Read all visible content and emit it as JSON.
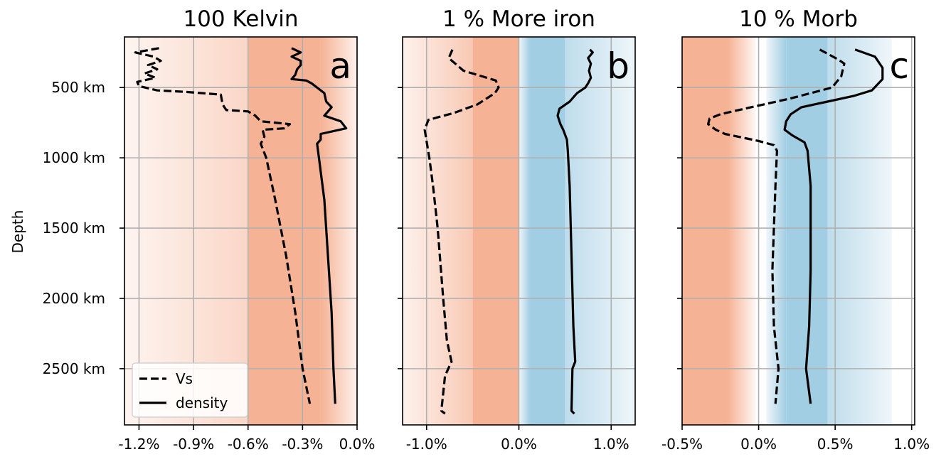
{
  "chart_data": {
    "type": "line",
    "ylabel": "Depth",
    "y_reversed": true,
    "ylim_km": [
      140,
      2900
    ],
    "yticks": [
      500,
      1000,
      1500,
      2000,
      2500
    ],
    "ytick_labels": [
      "500 km",
      "1000 km",
      "1500 km",
      "2000 km",
      "2500 km"
    ],
    "grid": true,
    "legend": {
      "placement": "lower-left",
      "panel": 0,
      "entries": [
        {
          "name": "Vs",
          "style": "dashed"
        },
        {
          "name": "density",
          "style": "solid"
        }
      ]
    },
    "panels": [
      {
        "title": "100 Kelvin",
        "letter": "a",
        "xlim": [
          -1.28,
          0.0
        ],
        "xticks": [
          -1.2,
          -0.9,
          -0.6,
          -0.3,
          0.0
        ],
        "xtick_labels": [
          "-1.2%",
          "-0.9%",
          "-0.6%",
          "-0.3%",
          "0.0%"
        ],
        "shading": [
          {
            "from": -1.28,
            "to": -0.6,
            "color": "#f4a582",
            "alpha_from": 0.12,
            "alpha_to": 0.45
          },
          {
            "from": -0.6,
            "to": -0.2,
            "color": "#f4a582",
            "alpha_from": 0.85,
            "alpha_to": 0.85
          },
          {
            "from": -0.2,
            "to": 0.0,
            "color": "#f4a582",
            "alpha_from": 0.85,
            "alpha_to": 0.15
          }
        ],
        "series": [
          {
            "name": "Vs",
            "style": "dashed",
            "points": [
              [
                -1.09,
                220
              ],
              [
                -1.22,
                250
              ],
              [
                -1.12,
                280
              ],
              [
                -1.08,
                310
              ],
              [
                -1.15,
                340
              ],
              [
                -1.1,
                370
              ],
              [
                -1.17,
                400
              ],
              [
                -1.11,
                430
              ],
              [
                -1.21,
                460
              ],
              [
                -1.2,
                490
              ],
              [
                -1.1,
                520
              ],
              [
                -0.95,
                530
              ],
              [
                -0.75,
                550
              ],
              [
                -0.74,
                620
              ],
              [
                -0.72,
                660
              ],
              [
                -0.6,
                670
              ],
              [
                -0.56,
                700
              ],
              [
                -0.53,
                740
              ],
              [
                -0.37,
                760
              ],
              [
                -0.4,
                790
              ],
              [
                -0.52,
                800
              ],
              [
                -0.51,
                850
              ],
              [
                -0.53,
                900
              ],
              [
                -0.5,
                1000
              ],
              [
                -0.45,
                1300
              ],
              [
                -0.39,
                1700
              ],
              [
                -0.34,
                2100
              ],
              [
                -0.3,
                2500
              ],
              [
                -0.26,
                2750
              ]
            ]
          },
          {
            "name": "density",
            "style": "solid",
            "points": [
              [
                -0.36,
                220
              ],
              [
                -0.31,
                250
              ],
              [
                -0.36,
                280
              ],
              [
                -0.31,
                310
              ],
              [
                -0.31,
                340
              ],
              [
                -0.33,
                370
              ],
              [
                -0.34,
                410
              ],
              [
                -0.36,
                440
              ],
              [
                -0.28,
                450
              ],
              [
                -0.25,
                470
              ],
              [
                -0.18,
                540
              ],
              [
                -0.17,
                600
              ],
              [
                -0.14,
                640
              ],
              [
                -0.18,
                700
              ],
              [
                -0.09,
                740
              ],
              [
                -0.06,
                790
              ],
              [
                -0.2,
                830
              ],
              [
                -0.2,
                870
              ],
              [
                -0.22,
                900
              ],
              [
                -0.21,
                1000
              ],
              [
                -0.18,
                1300
              ],
              [
                -0.16,
                1700
              ],
              [
                -0.14,
                2100
              ],
              [
                -0.13,
                2500
              ],
              [
                -0.12,
                2750
              ]
            ]
          }
        ]
      },
      {
        "title": "1 % More iron",
        "letter": "b",
        "xlim": [
          -1.26,
          1.26
        ],
        "xticks": [
          -1.0,
          0.0,
          1.0
        ],
        "xtick_labels": [
          "-1.0%",
          "0.0%",
          "1.0%"
        ],
        "shading": [
          {
            "from": -1.26,
            "to": -0.5,
            "color": "#f4a582",
            "alpha_from": 0.15,
            "alpha_to": 0.6
          },
          {
            "from": -0.5,
            "to": 0.0,
            "color": "#f4a582",
            "alpha_from": 0.85,
            "alpha_to": 0.85
          },
          {
            "from": 0.0,
            "to": 0.12,
            "color": "#92c5de",
            "alpha_from": 0.15,
            "alpha_to": 0.85
          },
          {
            "from": 0.12,
            "to": 0.5,
            "color": "#92c5de",
            "alpha_from": 0.85,
            "alpha_to": 0.85
          },
          {
            "from": 0.5,
            "to": 1.26,
            "color": "#92c5de",
            "alpha_from": 0.6,
            "alpha_to": 0.15
          }
        ],
        "series": [
          {
            "name": "Vs",
            "style": "dashed",
            "points": [
              [
                -0.72,
                230
              ],
              [
                -0.76,
                290
              ],
              [
                -0.6,
                380
              ],
              [
                -0.4,
                420
              ],
              [
                -0.25,
                450
              ],
              [
                -0.22,
                500
              ],
              [
                -0.26,
                540
              ],
              [
                -0.45,
                620
              ],
              [
                -0.7,
                680
              ],
              [
                -0.98,
                730
              ],
              [
                -1.02,
                800
              ],
              [
                -1.0,
                880
              ],
              [
                -0.97,
                1000
              ],
              [
                -0.93,
                1200
              ],
              [
                -0.88,
                1500
              ],
              [
                -0.82,
                2000
              ],
              [
                -0.78,
                2300
              ],
              [
                -0.74,
                2420
              ],
              [
                -0.73,
                2450
              ],
              [
                -0.8,
                2550
              ],
              [
                -0.84,
                2800
              ],
              [
                -0.8,
                2820
              ]
            ]
          },
          {
            "name": "density",
            "style": "solid",
            "points": [
              [
                0.77,
                230
              ],
              [
                0.8,
                250
              ],
              [
                0.75,
                290
              ],
              [
                0.78,
                330
              ],
              [
                0.76,
                380
              ],
              [
                0.78,
                430
              ],
              [
                0.75,
                470
              ],
              [
                0.72,
                500
              ],
              [
                0.63,
                540
              ],
              [
                0.55,
                600
              ],
              [
                0.44,
                650
              ],
              [
                0.42,
                700
              ],
              [
                0.45,
                760
              ],
              [
                0.48,
                800
              ],
              [
                0.52,
                870
              ],
              [
                0.53,
                950
              ],
              [
                0.55,
                1200
              ],
              [
                0.57,
                1700
              ],
              [
                0.59,
                2200
              ],
              [
                0.61,
                2450
              ],
              [
                0.58,
                2500
              ],
              [
                0.57,
                2800
              ],
              [
                0.6,
                2820
              ]
            ]
          }
        ]
      },
      {
        "title": "10 % Morb",
        "letter": "c",
        "xlim": [
          -0.5,
          1.02
        ],
        "xticks": [
          -0.5,
          0.0,
          0.5,
          1.0
        ],
        "xtick_labels": [
          "-0.5%",
          "0.0%",
          "0.5%",
          "1.0%"
        ],
        "shading": [
          {
            "from": -0.5,
            "to": -0.2,
            "color": "#f4a582",
            "alpha_from": 0.85,
            "alpha_to": 0.85
          },
          {
            "from": -0.2,
            "to": -0.02,
            "color": "#f4a582",
            "alpha_from": 0.85,
            "alpha_to": 0.1
          },
          {
            "from": 0.05,
            "to": 0.18,
            "color": "#92c5de",
            "alpha_from": 0.15,
            "alpha_to": 0.85
          },
          {
            "from": 0.18,
            "to": 0.45,
            "color": "#92c5de",
            "alpha_from": 0.85,
            "alpha_to": 0.85
          },
          {
            "from": 0.45,
            "to": 0.87,
            "color": "#92c5de",
            "alpha_from": 0.6,
            "alpha_to": 0.15
          }
        ],
        "series": [
          {
            "name": "Vs",
            "style": "dashed",
            "points": [
              [
                0.4,
                230
              ],
              [
                0.52,
                300
              ],
              [
                0.56,
                330
              ],
              [
                0.54,
                420
              ],
              [
                0.48,
                500
              ],
              [
                0.2,
                580
              ],
              [
                -0.05,
                640
              ],
              [
                -0.25,
                690
              ],
              [
                -0.32,
                720
              ],
              [
                -0.33,
                760
              ],
              [
                -0.28,
                800
              ],
              [
                -0.22,
                830
              ],
              [
                0.0,
                880
              ],
              [
                0.1,
                910
              ],
              [
                0.12,
                950
              ],
              [
                0.11,
                1200
              ],
              [
                0.09,
                1800
              ],
              [
                0.1,
                2200
              ],
              [
                0.13,
                2500
              ],
              [
                0.11,
                2750
              ]
            ]
          },
          {
            "name": "density",
            "style": "solid",
            "points": [
              [
                0.63,
                230
              ],
              [
                0.76,
                280
              ],
              [
                0.81,
                360
              ],
              [
                0.81,
                440
              ],
              [
                0.74,
                520
              ],
              [
                0.62,
                560
              ],
              [
                0.45,
                600
              ],
              [
                0.28,
                640
              ],
              [
                0.21,
                690
              ],
              [
                0.18,
                740
              ],
              [
                0.17,
                800
              ],
              [
                0.22,
                840
              ],
              [
                0.3,
                890
              ],
              [
                0.32,
                950
              ],
              [
                0.34,
                1200
              ],
              [
                0.34,
                1800
              ],
              [
                0.33,
                2200
              ],
              [
                0.31,
                2500
              ],
              [
                0.34,
                2750
              ]
            ]
          }
        ]
      }
    ]
  }
}
